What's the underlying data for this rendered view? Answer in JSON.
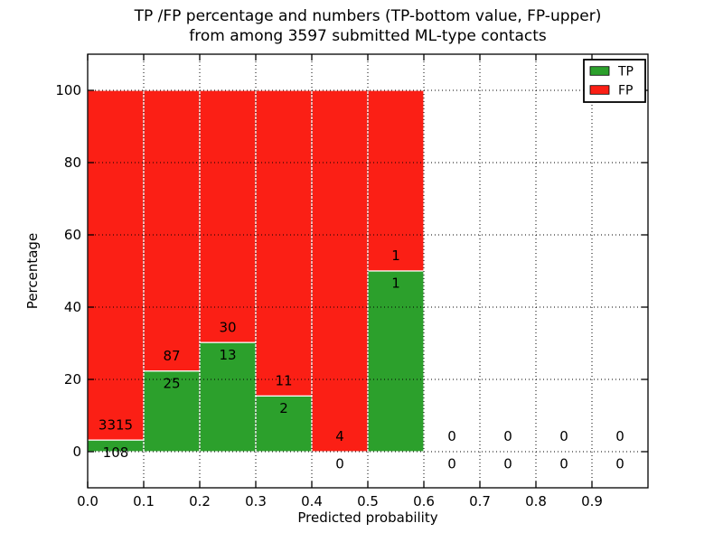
{
  "chart_data": {
    "type": "bar",
    "stacked": true,
    "title_line1": "TP /FP percentage and numbers (TP-bottom value, FP-upper)",
    "title_line2": "from among 3597 submitted ML-type contacts",
    "total_contacts": 3597,
    "xlabel": "Predicted probability",
    "ylabel": "Percentage",
    "xlim": [
      0.0,
      1.0
    ],
    "ylim": [
      -10,
      110
    ],
    "grid": "dotted",
    "x_tick_values": [
      0.0,
      0.1,
      0.2,
      0.3,
      0.4,
      0.5,
      0.6,
      0.7,
      0.8,
      0.9
    ],
    "x_tick_labels": [
      "0.0",
      "0.1",
      "0.2",
      "0.3",
      "0.4",
      "0.5",
      "0.6",
      "0.7",
      "0.8",
      "0.9"
    ],
    "y_tick_values": [
      0,
      20,
      40,
      60,
      80,
      100
    ],
    "y_tick_labels": [
      "0",
      "20",
      "40",
      "60",
      "80",
      "100"
    ],
    "colors": {
      "tp": "#2ca02c",
      "fp": "#fb1f15",
      "grid": "#000000",
      "axis": "#000000",
      "text": "#000000",
      "bar_edge": "#ffffff",
      "legend_bg": "#ffffff"
    },
    "legend": {
      "position": "top-right",
      "entries": [
        {
          "label": "TP",
          "color_key": "tp"
        },
        {
          "label": "FP",
          "color_key": "fp"
        }
      ]
    },
    "bins": [
      {
        "x0": 0.0,
        "x1": 0.1,
        "tp_count": "108",
        "fp_count": "3315",
        "tp_pct": 3.2,
        "fp_pct": 96.8
      },
      {
        "x0": 0.1,
        "x1": 0.2,
        "tp_count": "25",
        "fp_count": "87",
        "tp_pct": 22.3,
        "fp_pct": 77.7
      },
      {
        "x0": 0.2,
        "x1": 0.3,
        "tp_count": "13",
        "fp_count": "30",
        "tp_pct": 30.2,
        "fp_pct": 69.8
      },
      {
        "x0": 0.3,
        "x1": 0.4,
        "tp_count": "2",
        "fp_count": "11",
        "tp_pct": 15.4,
        "fp_pct": 84.6
      },
      {
        "x0": 0.4,
        "x1": 0.5,
        "tp_count": "0",
        "fp_count": "4",
        "tp_pct": 0,
        "fp_pct": 100
      },
      {
        "x0": 0.5,
        "x1": 0.6,
        "tp_count": "1",
        "fp_count": "1",
        "tp_pct": 50,
        "fp_pct": 50
      },
      {
        "x0": 0.6,
        "x1": 0.7,
        "tp_count": "0",
        "fp_count": "0",
        "tp_pct": 0,
        "fp_pct": 0
      },
      {
        "x0": 0.7,
        "x1": 0.8,
        "tp_count": "0",
        "fp_count": "0",
        "tp_pct": 0,
        "fp_pct": 0
      },
      {
        "x0": 0.8,
        "x1": 0.9,
        "tp_count": "0",
        "fp_count": "0",
        "tp_pct": 0,
        "fp_pct": 0
      },
      {
        "x0": 0.9,
        "x1": 1.0,
        "tp_count": "0",
        "fp_count": "0",
        "tp_pct": 0,
        "fp_pct": 0
      }
    ]
  }
}
